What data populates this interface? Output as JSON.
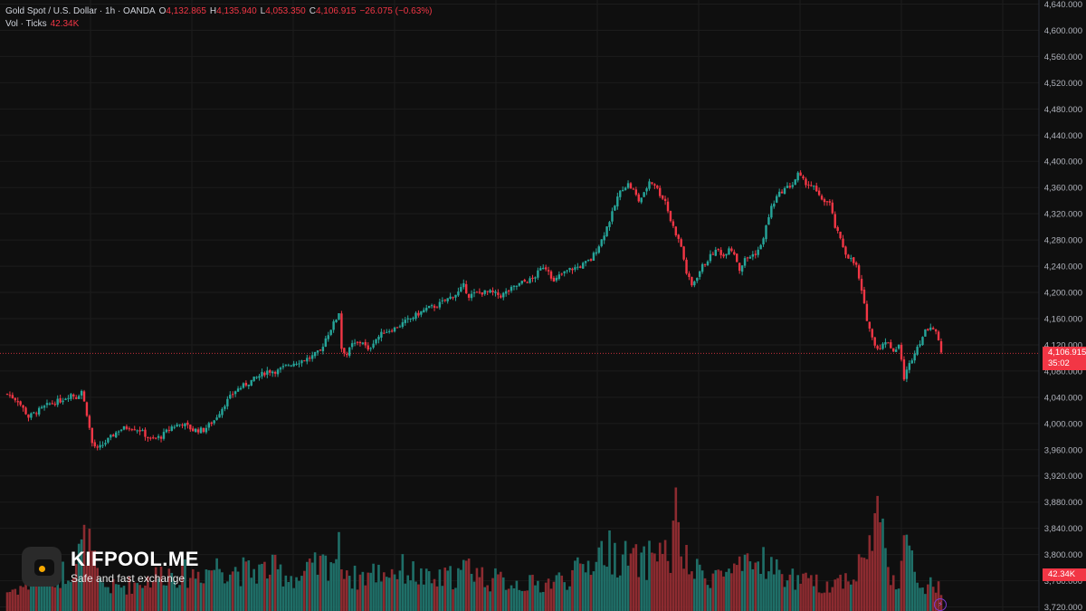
{
  "legend": {
    "symbol": "Gold Spot / U.S. Dollar · 1h · OANDA",
    "open_label": "O",
    "open": "4,132.865",
    "high_label": "H",
    "high": "4,135.940",
    "low_label": "L",
    "low": "4,053.350",
    "close_label": "C",
    "close": "4,106.915",
    "change": "−26.075 (−0.63%)",
    "vol_label": "Vol · Ticks",
    "vol_value": "42.34K"
  },
  "price_tag": {
    "price": "4,106.915",
    "countdown": "35:02"
  },
  "vol_tag": "42.34K",
  "watermark": {
    "name": "KIFPOOL.ME",
    "tagline": "Safe and fast exchange"
  },
  "colors": {
    "up": "#26a69a",
    "down": "#f23645",
    "up_vol": "#1f6f68",
    "down_vol": "#8c2b30",
    "grid": "#1c1c1c",
    "background": "#0f0f0f"
  },
  "chart_data": {
    "type": "candlestick",
    "y_range": [
      3700,
      4660
    ],
    "y_ticks": [
      "4,640.000",
      "4,600.000",
      "4,560.000",
      "4,520.000",
      "4,480.000",
      "4,440.000",
      "4,400.000",
      "4,360.000",
      "4,320.000",
      "4,280.000",
      "4,240.000",
      "4,200.000",
      "4,160.000",
      "4,120.000",
      "4,080.000",
      "4,040.000",
      "4,000.000",
      "3,960.000",
      "3,920.000",
      "3,880.000",
      "3,840.000",
      "3,800.000",
      "3,760.000",
      "3,720.000"
    ],
    "current_price": 4106.915,
    "close_path": [
      [
        0,
        4045
      ],
      [
        4,
        4035
      ],
      [
        8,
        4010
      ],
      [
        12,
        4020
      ],
      [
        16,
        4030
      ],
      [
        20,
        4035
      ],
      [
        24,
        4045
      ],
      [
        26,
        4040
      ],
      [
        28,
        4050
      ],
      [
        30,
        4015
      ],
      [
        32,
        3970
      ],
      [
        34,
        3960
      ],
      [
        38,
        3975
      ],
      [
        42,
        3990
      ],
      [
        46,
        3995
      ],
      [
        50,
        3990
      ],
      [
        54,
        3975
      ],
      [
        58,
        3980
      ],
      [
        62,
        3995
      ],
      [
        66,
        4000
      ],
      [
        70,
        3990
      ],
      [
        74,
        3990
      ],
      [
        78,
        4005
      ],
      [
        82,
        4030
      ],
      [
        86,
        4050
      ],
      [
        90,
        4060
      ],
      [
        94,
        4070
      ],
      [
        98,
        4080
      ],
      [
        102,
        4080
      ],
      [
        106,
        4090
      ],
      [
        110,
        4095
      ],
      [
        114,
        4100
      ],
      [
        118,
        4110
      ],
      [
        120,
        4130
      ],
      [
        122,
        4145
      ],
      [
        124,
        4160
      ],
      [
        125,
        4170
      ],
      [
        126,
        4115
      ],
      [
        128,
        4105
      ],
      [
        130,
        4120
      ],
      [
        134,
        4125
      ],
      [
        136,
        4110
      ],
      [
        138,
        4125
      ],
      [
        142,
        4140
      ],
      [
        146,
        4145
      ],
      [
        150,
        4155
      ],
      [
        154,
        4165
      ],
      [
        158,
        4175
      ],
      [
        162,
        4180
      ],
      [
        166,
        4190
      ],
      [
        170,
        4200
      ],
      [
        172,
        4210
      ],
      [
        174,
        4195
      ],
      [
        178,
        4200
      ],
      [
        182,
        4200
      ],
      [
        186,
        4195
      ],
      [
        190,
        4205
      ],
      [
        194,
        4215
      ],
      [
        198,
        4220
      ],
      [
        200,
        4230
      ],
      [
        202,
        4240
      ],
      [
        204,
        4235
      ],
      [
        206,
        4215
      ],
      [
        208,
        4225
      ],
      [
        212,
        4235
      ],
      [
        216,
        4240
      ],
      [
        220,
        4250
      ],
      [
        222,
        4265
      ],
      [
        224,
        4280
      ],
      [
        226,
        4300
      ],
      [
        228,
        4320
      ],
      [
        230,
        4345
      ],
      [
        232,
        4360
      ],
      [
        234,
        4365
      ],
      [
        236,
        4355
      ],
      [
        238,
        4340
      ],
      [
        240,
        4350
      ],
      [
        242,
        4370
      ],
      [
        244,
        4365
      ],
      [
        246,
        4350
      ],
      [
        248,
        4340
      ],
      [
        250,
        4310
      ],
      [
        252,
        4290
      ],
      [
        254,
        4270
      ],
      [
        256,
        4230
      ],
      [
        258,
        4210
      ],
      [
        260,
        4225
      ],
      [
        262,
        4240
      ],
      [
        264,
        4250
      ],
      [
        266,
        4260
      ],
      [
        268,
        4265
      ],
      [
        270,
        4255
      ],
      [
        272,
        4270
      ],
      [
        274,
        4260
      ],
      [
        276,
        4235
      ],
      [
        278,
        4250
      ],
      [
        280,
        4255
      ],
      [
        282,
        4260
      ],
      [
        284,
        4270
      ],
      [
        286,
        4300
      ],
      [
        288,
        4330
      ],
      [
        290,
        4345
      ],
      [
        292,
        4355
      ],
      [
        294,
        4360
      ],
      [
        296,
        4365
      ],
      [
        298,
        4380
      ],
      [
        300,
        4370
      ],
      [
        302,
        4365
      ],
      [
        304,
        4360
      ],
      [
        306,
        4345
      ],
      [
        308,
        4340
      ],
      [
        310,
        4335
      ],
      [
        312,
        4300
      ],
      [
        314,
        4280
      ],
      [
        316,
        4260
      ],
      [
        318,
        4250
      ],
      [
        320,
        4240
      ],
      [
        322,
        4200
      ],
      [
        324,
        4160
      ],
      [
        326,
        4130
      ],
      [
        328,
        4115
      ],
      [
        330,
        4120
      ],
      [
        332,
        4125
      ],
      [
        334,
        4110
      ],
      [
        336,
        4120
      ],
      [
        338,
        4070
      ],
      [
        340,
        4090
      ],
      [
        342,
        4110
      ],
      [
        344,
        4125
      ],
      [
        346,
        4140
      ],
      [
        348,
        4150
      ],
      [
        350,
        4140
      ],
      [
        352,
        4107
      ]
    ],
    "volume_envelope": [
      [
        0,
        0.15
      ],
      [
        10,
        0.22
      ],
      [
        20,
        0.28
      ],
      [
        25,
        0.35
      ],
      [
        30,
        0.55
      ],
      [
        35,
        0.2
      ],
      [
        40,
        0.18
      ],
      [
        50,
        0.22
      ],
      [
        60,
        0.3
      ],
      [
        70,
        0.28
      ],
      [
        80,
        0.35
      ],
      [
        90,
        0.3
      ],
      [
        100,
        0.32
      ],
      [
        110,
        0.25
      ],
      [
        115,
        0.32
      ],
      [
        120,
        0.36
      ],
      [
        125,
        0.45
      ],
      [
        130,
        0.25
      ],
      [
        140,
        0.3
      ],
      [
        150,
        0.32
      ],
      [
        160,
        0.22
      ],
      [
        170,
        0.28
      ],
      [
        175,
        0.35
      ],
      [
        180,
        0.25
      ],
      [
        190,
        0.22
      ],
      [
        200,
        0.2
      ],
      [
        210,
        0.25
      ],
      [
        215,
        0.3
      ],
      [
        220,
        0.38
      ],
      [
        225,
        0.48
      ],
      [
        230,
        0.42
      ],
      [
        240,
        0.36
      ],
      [
        245,
        0.5
      ],
      [
        250,
        0.4
      ],
      [
        252,
        0.72
      ],
      [
        255,
        0.4
      ],
      [
        258,
        0.3
      ],
      [
        265,
        0.28
      ],
      [
        275,
        0.3
      ],
      [
        280,
        0.33
      ],
      [
        285,
        0.4
      ],
      [
        290,
        0.3
      ],
      [
        300,
        0.22
      ],
      [
        310,
        0.2
      ],
      [
        320,
        0.3
      ],
      [
        325,
        0.5
      ],
      [
        328,
        0.78
      ],
      [
        332,
        0.35
      ],
      [
        336,
        0.2
      ],
      [
        338,
        0.55
      ],
      [
        341,
        0.35
      ],
      [
        345,
        0.18
      ],
      [
        350,
        0.2
      ],
      [
        352,
        0.15
      ]
    ]
  }
}
